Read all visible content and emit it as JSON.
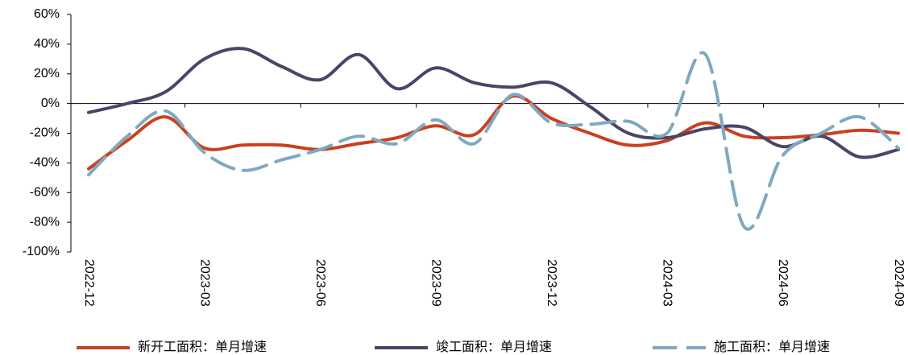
{
  "chart_data": {
    "type": "line",
    "categories": [
      "2022-12",
      null,
      null,
      "2023-03",
      null,
      null,
      "2023-06",
      null,
      null,
      "2023-09",
      null,
      null,
      "2023-12",
      null,
      null,
      "2024-03",
      null,
      null,
      "2024-06",
      null,
      null,
      "2024-09"
    ],
    "series": [
      {
        "name": "新开工面积：单月增速",
        "color": "#c9401f",
        "dash": false,
        "values": [
          -44,
          -25,
          -9,
          -30,
          -28,
          -28,
          -31,
          -27,
          -23,
          -15,
          -21,
          5,
          -10,
          -20,
          -28,
          -25,
          -13,
          -22,
          -23,
          -21,
          -18,
          -20
        ]
      },
      {
        "name": "竣工面积：单月增速",
        "color": "#4a4566",
        "dash": false,
        "values": [
          -6,
          0,
          8,
          30,
          37,
          25,
          16,
          33,
          10,
          24,
          14,
          11,
          14,
          -2,
          -20,
          -23,
          -17,
          -16,
          -29,
          -22,
          -36,
          -31
        ]
      },
      {
        "name": "施工面积：单月增速",
        "color": "#7fa9c0",
        "dash": true,
        "values": [
          -48,
          -22,
          -5,
          -33,
          -45,
          -38,
          -31,
          -22,
          -27,
          -11,
          -27,
          6,
          -13,
          -14,
          -12,
          -20,
          33,
          -83,
          -35,
          -20,
          -9,
          -30
        ]
      }
    ],
    "ylim": [
      -100,
      60
    ],
    "yticks": [
      {
        "value": -100,
        "label": "-100%"
      },
      {
        "value": -80,
        "label": "-80%"
      },
      {
        "value": -60,
        "label": "-60%"
      },
      {
        "value": -40,
        "label": "-40%"
      },
      {
        "value": -20,
        "label": "-20%"
      },
      {
        "value": 0,
        "label": "0%"
      },
      {
        "value": 20,
        "label": "20%"
      },
      {
        "value": 40,
        "label": "40%"
      },
      {
        "value": 60,
        "label": "60%"
      }
    ],
    "legend": "bottom"
  }
}
